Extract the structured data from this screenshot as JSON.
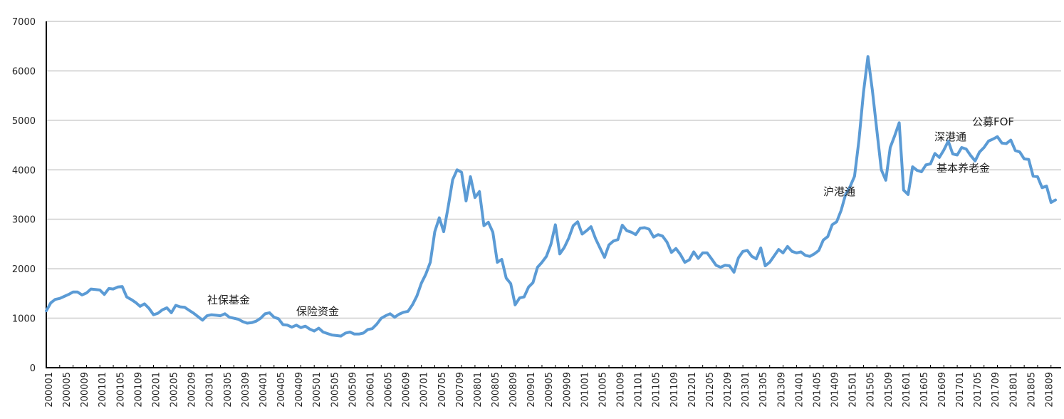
{
  "chart_data": {
    "type": "line",
    "title": "",
    "xlabel": "",
    "ylabel": "",
    "ylim": [
      0,
      7000
    ],
    "y_ticks": [
      0,
      1000,
      2000,
      3000,
      4000,
      5000,
      6000,
      7000
    ],
    "grid": "horizontal",
    "legend": "none",
    "color": "#5b9bd5",
    "x_tick_labels": [
      "200001",
      "200005",
      "200009",
      "200101",
      "200105",
      "200109",
      "200201",
      "200205",
      "200209",
      "200301",
      "200305",
      "200309",
      "200401",
      "200405",
      "200409",
      "200501",
      "200505",
      "200509",
      "200601",
      "200605",
      "200609",
      "200701",
      "200705",
      "200709",
      "200801",
      "200805",
      "200809",
      "200901",
      "200905",
      "200909",
      "201001",
      "201005",
      "201009",
      "201101",
      "201105",
      "201109",
      "201201",
      "201205",
      "201209",
      "201301",
      "201305",
      "201309",
      "201401",
      "201405",
      "201409",
      "201501",
      "201505",
      "201509",
      "201601",
      "201605",
      "201609",
      "201701",
      "201705",
      "201709",
      "201801",
      "201805",
      "201809"
    ],
    "series": [
      {
        "name": "",
        "values": [
          1150,
          1310,
          1380,
          1400,
          1440,
          1480,
          1530,
          1530,
          1470,
          1510,
          1590,
          1580,
          1570,
          1480,
          1600,
          1590,
          1630,
          1640,
          1430,
          1380,
          1320,
          1240,
          1290,
          1200,
          1070,
          1100,
          1170,
          1210,
          1110,
          1260,
          1230,
          1220,
          1160,
          1100,
          1030,
          960,
          1050,
          1070,
          1060,
          1050,
          1090,
          1020,
          1000,
          980,
          930,
          900,
          910,
          940,
          1000,
          1090,
          1110,
          1020,
          990,
          870,
          860,
          820,
          860,
          810,
          840,
          780,
          740,
          800,
          720,
          690,
          660,
          650,
          640,
          700,
          720,
          680,
          680,
          700,
          770,
          790,
          880,
          1000,
          1050,
          1090,
          1020,
          1080,
          1120,
          1140,
          1270,
          1450,
          1710,
          1890,
          2130,
          2750,
          3030,
          2750,
          3250,
          3800,
          4000,
          3950,
          3370,
          3860,
          3440,
          3560,
          2870,
          2940,
          2740,
          2130,
          2190,
          1810,
          1700,
          1270,
          1410,
          1430,
          1630,
          1720,
          2030,
          2130,
          2250,
          2490,
          2890,
          2300,
          2430,
          2620,
          2870,
          2950,
          2700,
          2770,
          2850,
          2610,
          2420,
          2230,
          2480,
          2560,
          2590,
          2880,
          2770,
          2740,
          2690,
          2820,
          2830,
          2800,
          2640,
          2690,
          2660,
          2540,
          2330,
          2410,
          2290,
          2130,
          2180,
          2340,
          2210,
          2320,
          2320,
          2200,
          2070,
          2030,
          2070,
          2060,
          1930,
          2220,
          2350,
          2370,
          2250,
          2200,
          2420,
          2060,
          2130,
          2260,
          2390,
          2320,
          2450,
          2350,
          2320,
          2340,
          2270,
          2250,
          2300,
          2370,
          2580,
          2650,
          2890,
          2950,
          3180,
          3500,
          3660,
          3870,
          4600,
          5560,
          6290,
          5610,
          4800,
          4000,
          3790,
          4450,
          4690,
          4950,
          3590,
          3500,
          4060,
          3990,
          3960,
          4100,
          4120,
          4330,
          4250,
          4400,
          4580,
          4320,
          4300,
          4450,
          4420,
          4290,
          4180,
          4360,
          4450,
          4580,
          4620,
          4670,
          4540,
          4530,
          4600,
          4390,
          4360,
          4220,
          4210,
          3870,
          3860,
          3640,
          3670,
          3340,
          3390
        ]
      }
    ],
    "annotations": [
      {
        "text": "社保基金"
      },
      {
        "text": "保险资金"
      },
      {
        "text": "沪港通"
      },
      {
        "text": "深港通"
      },
      {
        "text": "基本养老金"
      },
      {
        "text": "公募FOF"
      }
    ]
  }
}
